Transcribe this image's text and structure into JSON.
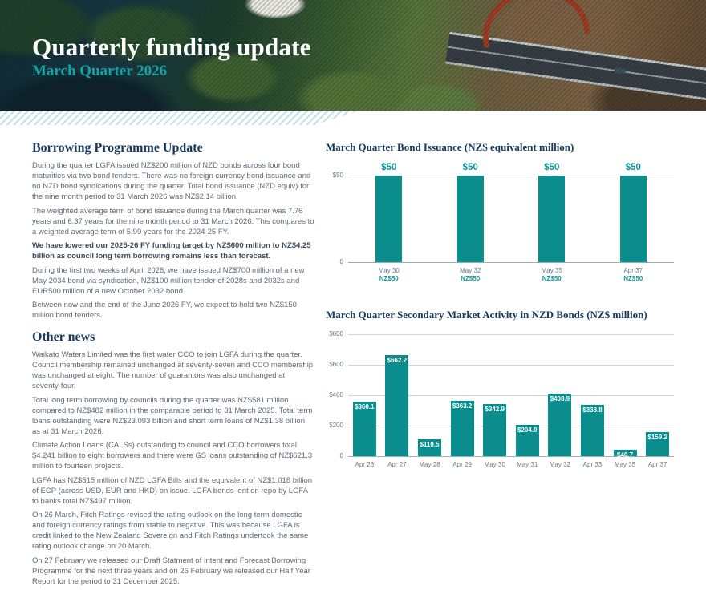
{
  "header": {
    "title": "Quarterly funding update",
    "subtitle": "March Quarter 2026"
  },
  "colors": {
    "teal_bar": "#0B8D8D",
    "teal_text": "#119999",
    "navy_heading": "#17395E",
    "body_text": "#5D6B77",
    "axis_text": "#6D7982"
  },
  "left": {
    "section1": {
      "heading": "Borrowing Programme Update",
      "paragraphs": [
        "During the quarter LGFA issued NZ$200 million of NZD bonds across four bond maturities via two bond tenders. There was no foreign currency bond issuance and no NZD bond syndications during the quarter. Total bond issuance (NZD equiv) for the nine month period to 31 March 2026 was NZ$2.14 billion.",
        "The weighted average term of bond issuance during the March quarter was 7.76 years and 6.37 years for the nine month period to 31 March 2026. This compares to a weighted average term of 5.99 years for the 2024-25 FY.",
        "We have lowered our 2025-26 FY funding target by NZ$600 million to NZ$4.25 billion as council long term borrowing remains less than forecast.",
        "During the first two weeks of April 2026, we have issued NZ$700 million of a new May 2034 bond via syndication, NZ$100 million tender of 2028s and 2032s and EUR500 million of a new October 2032 bond.",
        "Between now and the end of the June 2026 FY, we expect to hold two NZ$150 million bond tenders."
      ]
    },
    "section2": {
      "heading": "Other news",
      "paragraphs": [
        "Waikato Waters Limited was the first water CCO to join LGFA during the quarter. Council membership remained unchanged at seventy-seven and CCO membership was unchanged at eight. The number of guarantors was also unchanged at seventy-four.",
        "Total long term borrowing by councils during the quarter was NZ$581 million compared to NZ$482 million in the comparable period to 31 March  2025. Total term loans outstanding were NZ$23.093 billion and short term loans of NZ$1.38 billion as at 31 March 2026.",
        "Climate Action Loans (CALSs) outstanding to council and CCO borrowers total $4.241 billion to eight borrowers and there were GS loans outstanding of NZ$621.3 million to fourteen projects.",
        "LGFA has NZ$515 million of NZD LGFA Bills and the equivalent of NZ$1.018 billion of ECP (across USD, EUR and HKD) on issue. LGFA bonds lent on repo by LGFA to banks total NZ$497 million.",
        "On 26 March, Fitch Ratings revised the rating outlook on the  long term domestic and foreign currency ratings from stable to negative. This was because LGFA is credit linked to the New Zealand Sovereign and Fitch Ratings undertook the same rating outlook change on 20 March.",
        "On 27 February we released our Draft Statment of Intent and Forecast Borrowing Programme for the next three years and on 26 February we released our Half Year Report for the period to 31 December 2025."
      ]
    }
  },
  "chart_data": [
    {
      "type": "bar",
      "title": "March Quarter Bond Issuance (NZ$ equivalent million)",
      "categories": [
        "May 30",
        "May 32",
        "May 35",
        "Apr 37"
      ],
      "values": [
        50,
        50,
        50,
        50
      ],
      "bar_labels": [
        "$50",
        "$50",
        "$50",
        "$50"
      ],
      "x_sublabels": [
        "NZ$50",
        "NZ$50",
        "NZ$50",
        "NZ$50"
      ],
      "y_tick_values": [
        50,
        0
      ],
      "y_tick_labels": [
        "$50",
        "0"
      ],
      "ylim": [
        0,
        50
      ],
      "bar_color": "#0B8D8D",
      "label_position": "above",
      "grid": true,
      "legend": "none"
    },
    {
      "type": "bar",
      "title": "March Quarter Secondary Market Activity in NZD Bonds (NZ$ million)",
      "categories": [
        "Apr 26",
        "Apr 27",
        "May 28",
        "Apr 29",
        "May 30",
        "May 31",
        "May 32",
        "Apr 33",
        "May 35",
        "Apr 37"
      ],
      "values": [
        360.1,
        662.2,
        110.5,
        363.2,
        342.9,
        204.9,
        408.9,
        338.8,
        40.7,
        159.2
      ],
      "bar_labels": [
        "$360.1",
        "$662.2",
        "$110.5",
        "$363.2",
        "$342.9",
        "$204.9",
        "$408.9",
        "$338.8",
        "$40.7",
        "$159.2"
      ],
      "y_tick_values": [
        800,
        600,
        400,
        200,
        0
      ],
      "y_tick_labels": [
        "$800",
        "$600",
        "$400",
        "$200",
        "0"
      ],
      "ylim": [
        0,
        800
      ],
      "bar_color": "#0B8D8D",
      "label_position": "inside",
      "grid": true,
      "legend": "none"
    }
  ]
}
